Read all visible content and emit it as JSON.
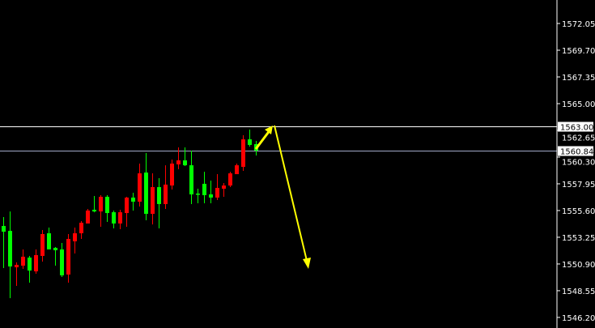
{
  "chart_data": {
    "type": "candlestick",
    "title": "",
    "xlabel": "",
    "ylabel": "",
    "ylim": [
      1545.5,
      1574.1
    ],
    "grid": false,
    "y_ticks": [
      "1572.05",
      "1569.70",
      "1567.35",
      "1565.00",
      "1562.65",
      "1560.30",
      "1557.95",
      "1555.60",
      "1553.25",
      "1550.90",
      "1548.55",
      "1546.20"
    ],
    "colors": {
      "background": "#000000",
      "up": "#ff0000",
      "down": "#00ff00",
      "axis": "#ffffff",
      "arrow": "#ffff00",
      "level_high": "#ffffff",
      "level_low": "#a0a8c8"
    },
    "levels": [
      {
        "price": 1563.0,
        "label": "1563.00",
        "color": "#ffffff"
      },
      {
        "price": 1560.84,
        "label": "1560.84",
        "color": "#a0a8c8"
      }
    ],
    "candles": [
      [
        1554.24,
        1555.03,
        1550.54,
        1553.74
      ],
      [
        1553.81,
        1555.52,
        1547.9,
        1550.68
      ],
      [
        1550.61,
        1551.04,
        1548.97,
        1550.82
      ],
      [
        1550.75,
        1552.18,
        1550.47,
        1551.54
      ],
      [
        1551.46,
        1551.61,
        1549.26,
        1550.32
      ],
      [
        1550.25,
        1552.18,
        1550.04,
        1551.68
      ],
      [
        1551.61,
        1553.89,
        1551.11,
        1553.53
      ],
      [
        1553.6,
        1554.1,
        1552.18,
        1552.18
      ],
      [
        1552.32,
        1552.39,
        1550.75,
        1552.11
      ],
      [
        1552.18,
        1552.75,
        1549.76,
        1549.9
      ],
      [
        1549.97,
        1553.53,
        1549.26,
        1553.1
      ],
      [
        1552.89,
        1554.1,
        1551.82,
        1553.6
      ],
      [
        1553.6,
        1554.67,
        1553.1,
        1554.53
      ],
      [
        1554.46,
        1555.74,
        1554.46,
        1555.6
      ],
      [
        1555.67,
        1556.88,
        1555.45,
        1555.52
      ],
      [
        1555.52,
        1556.95,
        1554.17,
        1556.81
      ],
      [
        1556.81,
        1556.95,
        1554.6,
        1555.38
      ],
      [
        1555.45,
        1555.6,
        1554.03,
        1554.46
      ],
      [
        1554.46,
        1555.67,
        1553.96,
        1555.45
      ],
      [
        1555.38,
        1556.81,
        1554.17,
        1556.74
      ],
      [
        1556.74,
        1557.16,
        1555.6,
        1556.38
      ],
      [
        1556.38,
        1559.73,
        1555.95,
        1558.87
      ],
      [
        1558.94,
        1560.65,
        1554.74,
        1555.31
      ],
      [
        1555.31,
        1558.87,
        1554.38,
        1557.66
      ],
      [
        1557.66,
        1558.45,
        1554.03,
        1556.17
      ],
      [
        1556.17,
        1559.58,
        1555.74,
        1557.88
      ],
      [
        1557.8,
        1560.08,
        1557.45,
        1559.73
      ],
      [
        1559.66,
        1561.15,
        1559.23,
        1560.01
      ],
      [
        1560.01,
        1561.15,
        1559.51,
        1559.58
      ],
      [
        1559.58,
        1560.87,
        1556.17,
        1557.02
      ],
      [
        1557.09,
        1557.52,
        1556.24,
        1557.02
      ],
      [
        1557.95,
        1559.01,
        1556.24,
        1556.95
      ],
      [
        1557.02,
        1558.23,
        1556.24,
        1556.74
      ],
      [
        1556.74,
        1558.8,
        1556.52,
        1557.59
      ],
      [
        1557.52,
        1558.02,
        1556.81,
        1557.8
      ],
      [
        1557.8,
        1559.01,
        1557.66,
        1558.87
      ],
      [
        1558.8,
        1559.73,
        1558.8,
        1559.58
      ],
      [
        1559.44,
        1562.22,
        1559.09,
        1561.86
      ],
      [
        1561.86,
        1562.72,
        1561.22,
        1561.37
      ],
      [
        1561.44,
        1561.72,
        1560.44,
        1560.87
      ]
    ],
    "candle_fields": [
      "open",
      "high",
      "low",
      "close"
    ]
  }
}
